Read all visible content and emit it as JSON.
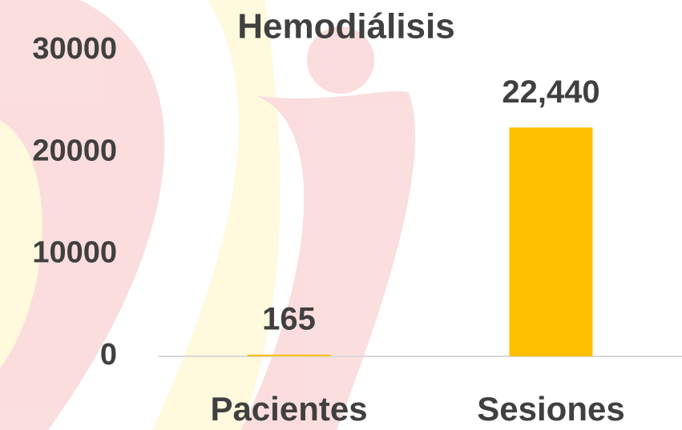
{
  "chart_data": {
    "type": "bar",
    "title": "Hemodiálisis",
    "categories": [
      "Pacientes",
      "Sesiones"
    ],
    "values": [
      165,
      22440
    ],
    "value_labels": [
      "165",
      "22,440"
    ],
    "color": "#ffc000",
    "ylim": [
      0,
      30000
    ],
    "yticks": [
      0,
      10000,
      20000,
      30000
    ],
    "grid": false
  }
}
